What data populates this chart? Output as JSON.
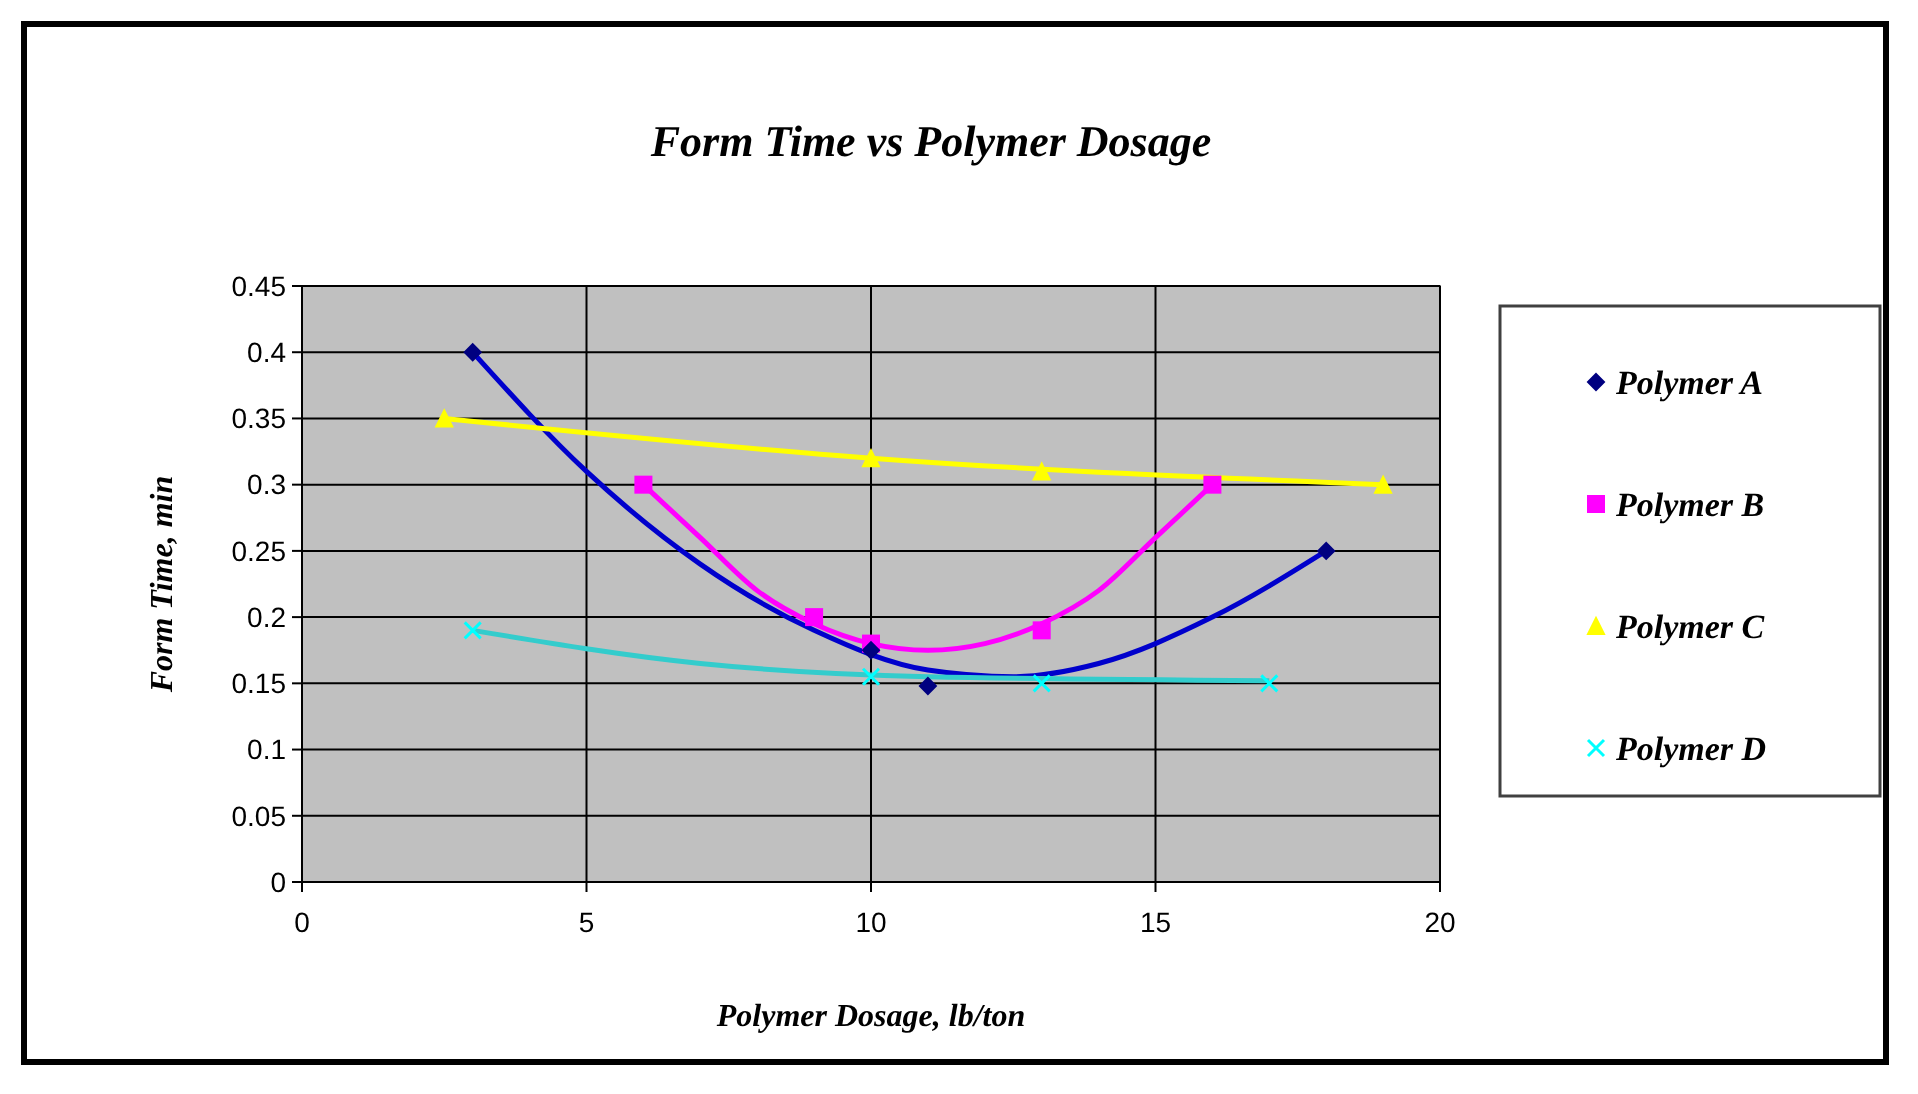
{
  "chart_data": {
    "type": "scatter",
    "title": "Form Time vs Polymer Dosage",
    "xlabel": "Polymer Dosage, lb/ton",
    "ylabel": "Form Time, min",
    "xlim": [
      0,
      20
    ],
    "xticks": [
      0,
      5,
      10,
      15,
      20
    ],
    "ylim": [
      0,
      0.45
    ],
    "yticks": [
      0,
      0.05,
      0.1,
      0.15,
      0.2,
      0.25,
      0.3,
      0.35,
      0.4,
      0.45
    ],
    "grid": true,
    "legend": "right",
    "series": [
      {
        "name": "Polymer A",
        "color": "#000080",
        "marker": "diamond",
        "x": [
          3,
          10,
          11,
          18
        ],
        "values": [
          0.4,
          0.175,
          0.148,
          0.25
        ]
      },
      {
        "name": "Polymer B",
        "color": "#ff00ff",
        "marker": "square",
        "x": [
          6,
          9,
          10,
          13,
          16
        ],
        "values": [
          0.3,
          0.2,
          0.18,
          0.19,
          0.3
        ]
      },
      {
        "name": "Polymer C",
        "color": "#ffff00",
        "marker": "triangle",
        "x": [
          2.5,
          10,
          13,
          19
        ],
        "values": [
          0.35,
          0.32,
          0.31,
          0.3
        ]
      },
      {
        "name": "Polymer D",
        "color": "#00ffff",
        "marker": "cross",
        "x": [
          3,
          10,
          13,
          17
        ],
        "values": [
          0.19,
          0.155,
          0.15,
          0.15
        ]
      },
      {
        "type": "line",
        "color": "#0000cc",
        "marker": "none",
        "x": [
          3,
          5,
          7,
          9,
          11,
          12.5,
          14,
          16,
          18
        ],
        "values": [
          0.4,
          0.31,
          0.24,
          0.19,
          0.16,
          0.155,
          0.165,
          0.2,
          0.25
        ]
      },
      {
        "type": "line",
        "color": "#ff00ff",
        "marker": "none",
        "x": [
          6,
          7,
          8,
          9,
          10,
          11,
          12,
          13,
          14,
          15,
          16
        ],
        "values": [
          0.3,
          0.26,
          0.22,
          0.195,
          0.18,
          0.175,
          0.18,
          0.195,
          0.22,
          0.26,
          0.3
        ]
      },
      {
        "type": "line",
        "color": "#ffff00",
        "marker": "none",
        "x": [
          2.5,
          10,
          19
        ],
        "values": [
          0.35,
          0.32,
          0.3
        ]
      },
      {
        "type": "line",
        "color": "#33cccc",
        "marker": "none",
        "x": [
          3,
          7,
          11,
          17
        ],
        "values": [
          0.19,
          0.165,
          0.155,
          0.152
        ]
      }
    ]
  }
}
